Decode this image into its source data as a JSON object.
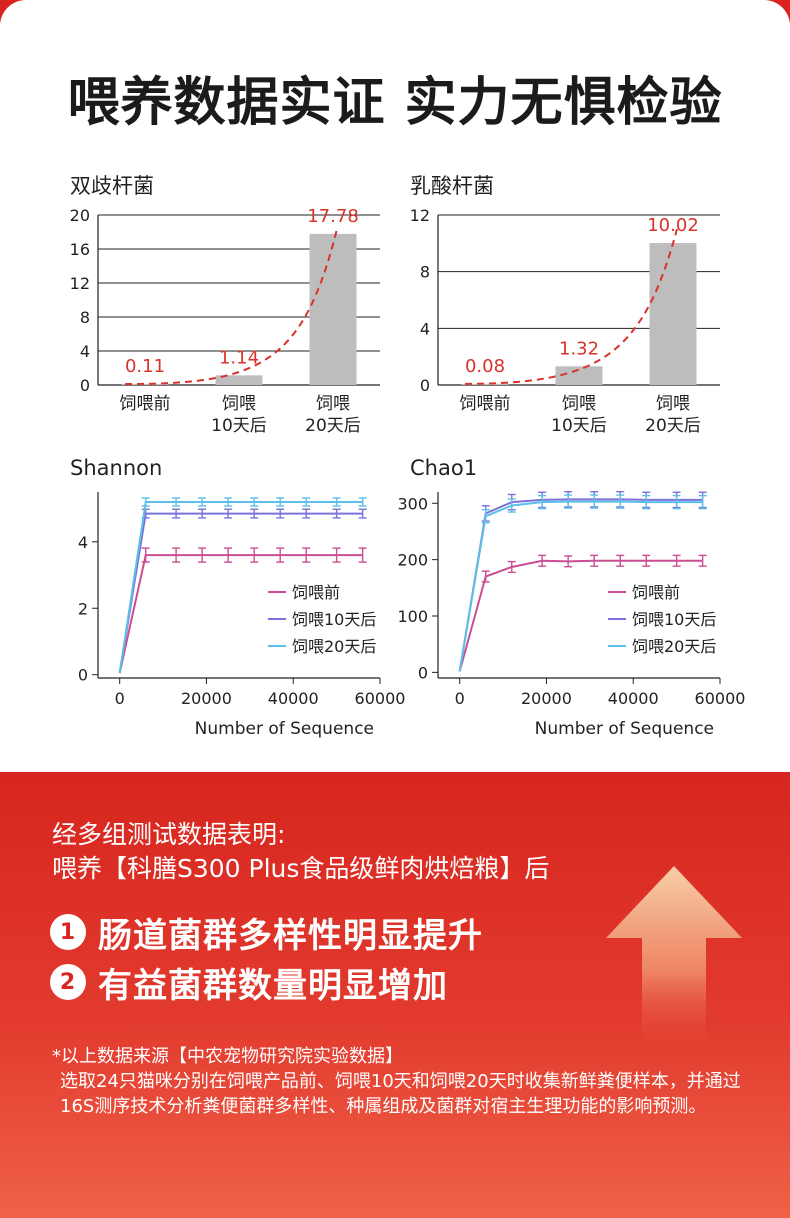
{
  "page": {
    "title": "喂养数据实证 实力无惧检验"
  },
  "chart_data": [
    {
      "type": "bar",
      "title": "双歧杆菌",
      "categories": [
        "饲喂前",
        "饲喂\n10天后",
        "饲喂\n20天后"
      ],
      "values": [
        0.11,
        1.14,
        17.78
      ],
      "value_labels": [
        "0.11",
        "1.14",
        "17.78"
      ],
      "ylim": [
        0,
        20
      ],
      "yticks": [
        0,
        4,
        8,
        12,
        16,
        20
      ],
      "trendline": "dashed",
      "grid": true,
      "colors": {
        "bar": "#bdbdbd",
        "label": "#d8332b"
      }
    },
    {
      "type": "bar",
      "title": "乳酸杆菌",
      "categories": [
        "饲喂前",
        "饲喂\n10天后",
        "饲喂\n20天后"
      ],
      "values": [
        0.08,
        1.32,
        10.02
      ],
      "value_labels": [
        "0.08",
        "1.32",
        "10.02"
      ],
      "ylim": [
        0,
        12
      ],
      "yticks": [
        0,
        4,
        8,
        12
      ],
      "trendline": "dashed",
      "grid": true,
      "colors": {
        "bar": "#bdbdbd",
        "label": "#d8332b"
      }
    },
    {
      "type": "line",
      "title": "Shannon",
      "xlabel": "Number of Sequence",
      "xlim": [
        -5000,
        60000
      ],
      "xticks": [
        "0",
        "20000",
        "40000",
        "60000"
      ],
      "ylim": [
        -0.1,
        5.5
      ],
      "yticks": [
        "0",
        "2",
        "4"
      ],
      "x": [
        0,
        6000,
        13000,
        19000,
        25000,
        31000,
        37000,
        43000,
        50000,
        56000
      ],
      "series": [
        {
          "name": "饲喂前",
          "color": "#c84f93",
          "values": [
            0.05,
            3.6,
            3.6,
            3.6,
            3.6,
            3.6,
            3.6,
            3.6,
            3.6,
            3.6
          ],
          "err": 0.15
        },
        {
          "name": "饲喂10天后",
          "color": "#7b73d9",
          "values": [
            0.05,
            4.85,
            4.85,
            4.85,
            4.85,
            4.85,
            4.85,
            4.85,
            4.85,
            4.85
          ],
          "err": 0.07
        },
        {
          "name": "饲喂20天后",
          "color": "#5cc0e6",
          "values": [
            0.05,
            5.2,
            5.2,
            5.2,
            5.2,
            5.2,
            5.2,
            5.2,
            5.2,
            5.2
          ],
          "err": 0.06
        }
      ],
      "legend": "bottom-right"
    },
    {
      "type": "line",
      "title": "Chao1",
      "xlabel": "Number of Sequence",
      "xlim": [
        -5000,
        60000
      ],
      "xticks": [
        "0",
        "20000",
        "40000",
        "60000"
      ],
      "ylim": [
        -10,
        320
      ],
      "yticks": [
        "0",
        "100",
        "200",
        "300"
      ],
      "x": [
        0,
        6000,
        12000,
        19000,
        25000,
        31000,
        37000,
        43000,
        50000,
        56000
      ],
      "series": [
        {
          "name": "饲喂前",
          "color": "#c84f93",
          "values": [
            2,
            170,
            187,
            198,
            197,
            198,
            198,
            198,
            198,
            198
          ],
          "err": 6
        },
        {
          "name": "饲喂10天后",
          "color": "#7b73d9",
          "values": [
            2,
            282,
            302,
            306,
            307,
            307,
            307,
            306,
            306,
            306
          ],
          "err": 10
        },
        {
          "name": "饲喂20天后",
          "color": "#5cc0e6",
          "values": [
            2,
            277,
            296,
            302,
            303,
            303,
            303,
            302,
            302,
            302
          ],
          "err": 8
        }
      ],
      "legend": "bottom-right"
    }
  ],
  "summary": {
    "intro_line1": "经多组测试数据表明:",
    "intro_line2": "喂养【科膳S300 Plus食品级鲜肉烘焙粮】后",
    "points": [
      {
        "num": "1",
        "text": "肠道菌群多样性明显提升"
      },
      {
        "num": "2",
        "text": "有益菌群数量明显增加"
      }
    ],
    "note_source": "*以上数据来源【中农宠物研究院实验数据】",
    "note_body": "选取24只猫咪分别在饲喂产品前、饲喂10天和饲喂20天时收集新鲜粪便样本，并通过16S测序技术分析粪便菌群多样性、种属组成及菌群对宿主生理功能的影响预测。"
  }
}
